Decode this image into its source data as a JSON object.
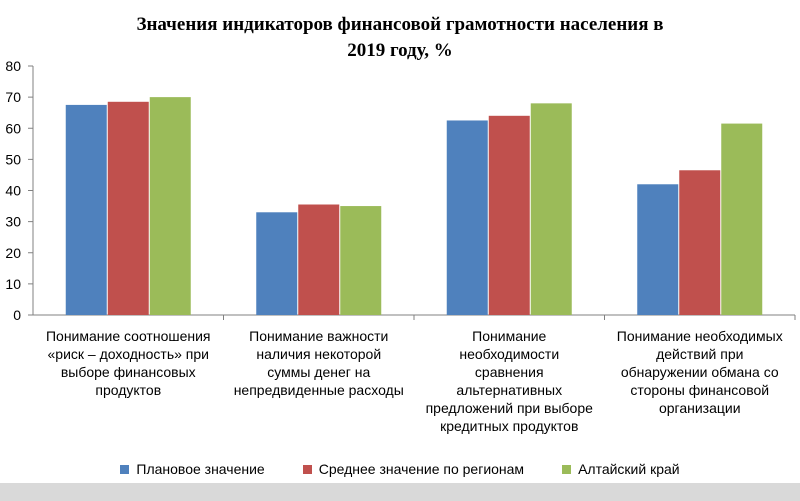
{
  "chart_data": {
    "type": "bar",
    "title": "Значения индикаторов финансовой грамотности населения в 2019 году, %",
    "title_lines": [
      "Значения индикаторов финансовой грамотности населения в",
      "2019 году, %"
    ],
    "categories": [
      "Понимание соотношения «риск – доходность» при выборе финансовых продуктов",
      "Понимание важности наличия некоторой суммы денег на непредвиденные расходы",
      "Понимание необходимости сравнения альтернативных предложений при выборе кредитных продуктов",
      "Понимание необходимых действий при обнаружении обмана со стороны финансовой организации"
    ],
    "category_lines": [
      [
        "Понимание соотношения",
        "«риск – доходность»  при",
        "выборе финансовых",
        "продуктов"
      ],
      [
        "Понимание важности",
        "наличия некоторой",
        "суммы денег на",
        "непредвиденные  расходы"
      ],
      [
        "Понимание",
        "необходимости",
        "сравнения",
        "альтернативных",
        "предложений  при выборе",
        "кредитных  продуктов"
      ],
      [
        "Понимание необходимых",
        "действий при",
        "обнаружении обмана со",
        "стороны финансовой",
        "организации"
      ]
    ],
    "series": [
      {
        "name": "Плановое значение",
        "color": "#4f81bd",
        "values": [
          67.5,
          33,
          62.5,
          42
        ]
      },
      {
        "name": "Среднее значение по регионам",
        "color": "#c0504d",
        "values": [
          68.5,
          35.5,
          64,
          46.5
        ]
      },
      {
        "name": "Алтайский край",
        "color": "#9bbb59",
        "values": [
          70,
          35,
          68,
          61.5
        ]
      }
    ],
    "ylim": [
      0,
      80
    ],
    "yticks": [
      "0",
      "10",
      "20",
      "30",
      "40",
      "50",
      "60",
      "70",
      "80"
    ],
    "xlabel": "",
    "ylabel": "",
    "grid": false,
    "legend": "bottom"
  }
}
